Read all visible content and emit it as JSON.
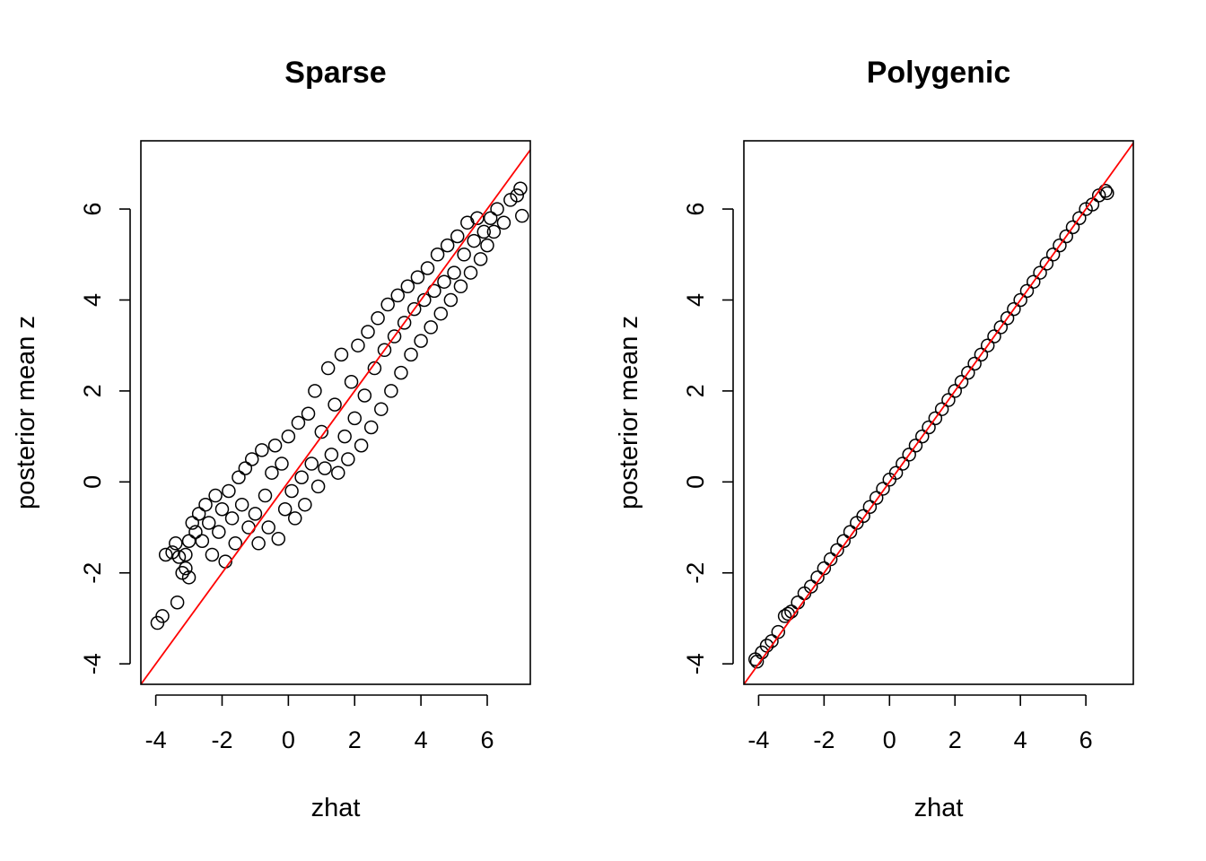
{
  "chart_data": [
    {
      "type": "scatter",
      "title": "Sparse",
      "xlabel": "zhat",
      "ylabel": "posterior mean z",
      "xlim": [
        -4.45,
        7.3
      ],
      "ylim": [
        -4.45,
        7.5
      ],
      "xticks": [
        -4,
        -2,
        0,
        2,
        4,
        6
      ],
      "yticks": [
        -4,
        -2,
        0,
        2,
        4,
        6
      ],
      "marker": "open-circle",
      "point_color": "#000000",
      "reference_line": {
        "type": "abline",
        "intercept": 0,
        "slope": 1,
        "color": "#ff0000"
      },
      "series": [
        {
          "points": [
            [
              -3.95,
              -3.1
            ],
            [
              -3.8,
              -2.95
            ],
            [
              -3.35,
              -2.65
            ],
            [
              -3.7,
              -1.6
            ],
            [
              -3.5,
              -1.55
            ],
            [
              -3.4,
              -1.35
            ],
            [
              -3.3,
              -1.65
            ],
            [
              -3.2,
              -2.0
            ],
            [
              -3.1,
              -1.9
            ],
            [
              -3.0,
              -2.1
            ],
            [
              -3.1,
              -1.6
            ],
            [
              -3.0,
              -1.3
            ],
            [
              -2.9,
              -0.9
            ],
            [
              -2.8,
              -1.1
            ],
            [
              -2.7,
              -0.7
            ],
            [
              -2.6,
              -1.3
            ],
            [
              -2.5,
              -0.5
            ],
            [
              -2.4,
              -0.9
            ],
            [
              -2.3,
              -1.6
            ],
            [
              -2.2,
              -0.3
            ],
            [
              -2.1,
              -1.1
            ],
            [
              -2.0,
              -0.6
            ],
            [
              -1.9,
              -1.75
            ],
            [
              -1.8,
              -0.2
            ],
            [
              -1.7,
              -0.8
            ],
            [
              -1.6,
              -1.35
            ],
            [
              -1.5,
              0.1
            ],
            [
              -1.4,
              -0.5
            ],
            [
              -1.3,
              0.3
            ],
            [
              -1.2,
              -1.0
            ],
            [
              -1.1,
              0.5
            ],
            [
              -1.0,
              -0.7
            ],
            [
              -0.9,
              -1.35
            ],
            [
              -0.8,
              0.7
            ],
            [
              -0.7,
              -0.3
            ],
            [
              -0.6,
              -1.0
            ],
            [
              -0.5,
              0.2
            ],
            [
              -0.4,
              0.8
            ],
            [
              -0.3,
              -1.25
            ],
            [
              -0.2,
              0.4
            ],
            [
              -0.1,
              -0.6
            ],
            [
              0.0,
              1.0
            ],
            [
              0.1,
              -0.2
            ],
            [
              0.2,
              -0.8
            ],
            [
              0.3,
              1.3
            ],
            [
              0.4,
              0.1
            ],
            [
              0.5,
              -0.5
            ],
            [
              0.6,
              1.5
            ],
            [
              0.7,
              0.4
            ],
            [
              0.8,
              2.0
            ],
            [
              0.9,
              -0.1
            ],
            [
              1.0,
              1.1
            ],
            [
              1.1,
              0.3
            ],
            [
              1.2,
              2.5
            ],
            [
              1.3,
              0.6
            ],
            [
              1.4,
              1.7
            ],
            [
              1.5,
              0.2
            ],
            [
              1.6,
              2.8
            ],
            [
              1.7,
              1.0
            ],
            [
              1.8,
              0.5
            ],
            [
              1.9,
              2.2
            ],
            [
              2.0,
              1.4
            ],
            [
              2.1,
              3.0
            ],
            [
              2.2,
              0.8
            ],
            [
              2.3,
              1.9
            ],
            [
              2.4,
              3.3
            ],
            [
              2.5,
              1.2
            ],
            [
              2.6,
              2.5
            ],
            [
              2.7,
              3.6
            ],
            [
              2.8,
              1.6
            ],
            [
              2.9,
              2.9
            ],
            [
              3.0,
              3.9
            ],
            [
              3.1,
              2.0
            ],
            [
              3.2,
              3.2
            ],
            [
              3.3,
              4.1
            ],
            [
              3.4,
              2.4
            ],
            [
              3.5,
              3.5
            ],
            [
              3.6,
              4.3
            ],
            [
              3.7,
              2.8
            ],
            [
              3.8,
              3.8
            ],
            [
              3.9,
              4.5
            ],
            [
              4.0,
              3.1
            ],
            [
              4.1,
              4.0
            ],
            [
              4.2,
              4.7
            ],
            [
              4.3,
              3.4
            ],
            [
              4.4,
              4.2
            ],
            [
              4.5,
              5.0
            ],
            [
              4.6,
              3.7
            ],
            [
              4.7,
              4.4
            ],
            [
              4.8,
              5.2
            ],
            [
              4.9,
              4.0
            ],
            [
              5.0,
              4.6
            ],
            [
              5.1,
              5.4
            ],
            [
              5.2,
              4.3
            ],
            [
              5.3,
              5.0
            ],
            [
              5.4,
              5.7
            ],
            [
              5.5,
              4.6
            ],
            [
              5.6,
              5.3
            ],
            [
              5.7,
              5.8
            ],
            [
              5.8,
              4.9
            ],
            [
              5.9,
              5.5
            ],
            [
              6.0,
              5.2
            ],
            [
              6.1,
              5.8
            ],
            [
              6.2,
              5.5
            ],
            [
              6.3,
              6.0
            ],
            [
              6.5,
              5.7
            ],
            [
              6.7,
              6.2
            ],
            [
              6.9,
              6.3
            ],
            [
              7.0,
              6.45
            ],
            [
              7.05,
              5.85
            ]
          ]
        }
      ]
    },
    {
      "type": "scatter",
      "title": "Polygenic",
      "xlabel": "zhat",
      "ylabel": "posterior mean z",
      "xlim": [
        -4.45,
        7.45
      ],
      "ylim": [
        -4.45,
        7.5
      ],
      "xticks": [
        -4,
        -2,
        0,
        2,
        4,
        6
      ],
      "yticks": [
        -4,
        -2,
        0,
        2,
        4,
        6
      ],
      "marker": "open-circle",
      "point_color": "#000000",
      "reference_line": {
        "type": "abline",
        "intercept": 0,
        "slope": 1,
        "color": "#ff0000"
      },
      "series": [
        {
          "points": [
            [
              -4.1,
              -3.9
            ],
            [
              -4.05,
              -3.95
            ],
            [
              -3.9,
              -3.75
            ],
            [
              -3.75,
              -3.6
            ],
            [
              -3.6,
              -3.5
            ],
            [
              -3.4,
              -3.3
            ],
            [
              -3.2,
              -2.95
            ],
            [
              -3.1,
              -2.9
            ],
            [
              -3.0,
              -2.85
            ],
            [
              -2.8,
              -2.65
            ],
            [
              -2.6,
              -2.45
            ],
            [
              -2.4,
              -2.3
            ],
            [
              -2.2,
              -2.1
            ],
            [
              -2.0,
              -1.9
            ],
            [
              -1.8,
              -1.7
            ],
            [
              -1.6,
              -1.5
            ],
            [
              -1.4,
              -1.3
            ],
            [
              -1.2,
              -1.1
            ],
            [
              -1.0,
              -0.9
            ],
            [
              -0.8,
              -0.75
            ],
            [
              -0.6,
              -0.55
            ],
            [
              -0.4,
              -0.35
            ],
            [
              -0.2,
              -0.15
            ],
            [
              0.0,
              0.05
            ],
            [
              0.2,
              0.2
            ],
            [
              0.4,
              0.4
            ],
            [
              0.6,
              0.6
            ],
            [
              0.8,
              0.8
            ],
            [
              1.0,
              1.0
            ],
            [
              1.2,
              1.2
            ],
            [
              1.4,
              1.4
            ],
            [
              1.6,
              1.6
            ],
            [
              1.8,
              1.8
            ],
            [
              2.0,
              2.0
            ],
            [
              2.2,
              2.2
            ],
            [
              2.4,
              2.4
            ],
            [
              2.6,
              2.6
            ],
            [
              2.8,
              2.8
            ],
            [
              3.0,
              3.0
            ],
            [
              3.2,
              3.2
            ],
            [
              3.4,
              3.4
            ],
            [
              3.6,
              3.6
            ],
            [
              3.8,
              3.8
            ],
            [
              4.0,
              4.0
            ],
            [
              4.2,
              4.2
            ],
            [
              4.4,
              4.4
            ],
            [
              4.6,
              4.6
            ],
            [
              4.8,
              4.8
            ],
            [
              5.0,
              5.0
            ],
            [
              5.2,
              5.2
            ],
            [
              5.4,
              5.4
            ],
            [
              5.6,
              5.6
            ],
            [
              5.8,
              5.8
            ],
            [
              6.0,
              6.0
            ],
            [
              6.2,
              6.1
            ],
            [
              6.4,
              6.3
            ],
            [
              6.6,
              6.4
            ],
            [
              6.65,
              6.35
            ]
          ]
        }
      ]
    }
  ]
}
